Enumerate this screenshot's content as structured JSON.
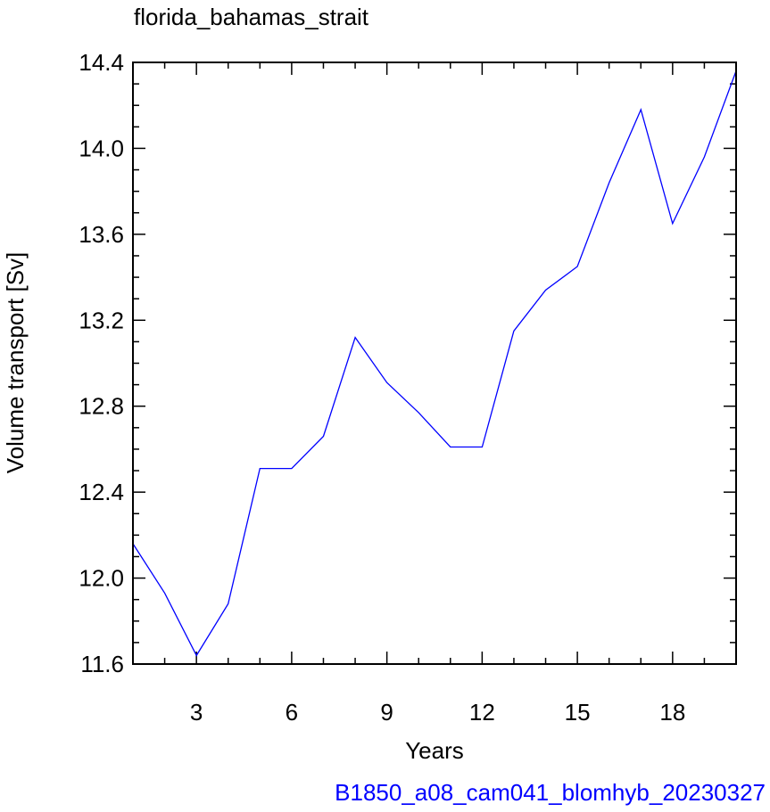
{
  "chart_data": {
    "type": "line",
    "title": "florida_bahamas_strait",
    "xlabel": "Years",
    "ylabel": "Volume transport [Sv]",
    "caption": "B1850_a08_cam041_blomhyb_20230327",
    "xlim": [
      1,
      20
    ],
    "ylim": [
      11.6,
      14.4
    ],
    "x_ticks": [
      3,
      6,
      9,
      12,
      15,
      18
    ],
    "y_ticks": [
      11.6,
      12.0,
      12.4,
      12.8,
      13.2,
      13.6,
      14.0,
      14.4
    ],
    "y_tick_labels": [
      "11.6",
      "12.0",
      "12.4",
      "12.8",
      "13.2",
      "13.6",
      "14.0",
      "14.4"
    ],
    "grid": false,
    "colors": {
      "line": "#0000ff",
      "caption": "#0000ff",
      "axis": "#000000"
    },
    "series": [
      {
        "x": [
          1,
          2,
          3,
          4,
          5,
          6,
          7,
          8,
          9,
          10,
          11,
          12,
          13,
          14,
          15,
          16,
          17,
          18,
          19,
          20
        ],
        "values": [
          12.16,
          11.93,
          11.64,
          11.88,
          12.51,
          12.51,
          12.66,
          13.12,
          12.91,
          12.77,
          12.61,
          12.61,
          13.15,
          13.34,
          13.45,
          13.84,
          14.18,
          13.65,
          13.96,
          14.36
        ]
      }
    ]
  }
}
